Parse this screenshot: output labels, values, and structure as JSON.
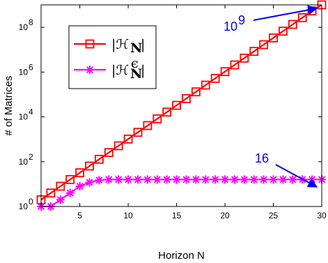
{
  "chart_data": {
    "type": "line",
    "xlabel": "Horizon N",
    "ylabel": "# of Matrices",
    "y_scale": "log",
    "xlim": [
      1,
      30
    ],
    "ylim": [
      1,
      1000000000
    ],
    "x_ticks": [
      5,
      10,
      15,
      20,
      25,
      30
    ],
    "x_tick_labels": [
      "5",
      "10",
      "15",
      "20",
      "25",
      "30"
    ],
    "y_ticks": [
      1,
      100,
      10000,
      1000000,
      100000000
    ],
    "y_tick_labels": [
      {
        "base": "10",
        "exp": "0"
      },
      {
        "base": "10",
        "exp": "2"
      },
      {
        "base": "10",
        "exp": "4"
      },
      {
        "base": "10",
        "exp": "6"
      },
      {
        "base": "10",
        "exp": "8"
      }
    ],
    "grid": false,
    "legend_position": "top-left",
    "x": [
      1,
      2,
      3,
      4,
      5,
      6,
      7,
      8,
      9,
      10,
      11,
      12,
      13,
      14,
      15,
      16,
      17,
      18,
      19,
      20,
      21,
      22,
      23,
      24,
      25,
      26,
      27,
      28,
      29,
      30
    ],
    "series": [
      {
        "name": "|H_N|",
        "legend": {
          "main": "|ℋ",
          "sub": "N",
          "sup": "",
          "close": "|"
        },
        "color": "#ff0000",
        "marker": "square",
        "values": [
          2,
          4,
          8,
          16,
          32,
          64,
          128,
          256,
          512,
          1024,
          2048,
          4096,
          8192,
          16384,
          32768,
          65536,
          131072,
          262144,
          524288,
          1048576,
          2097152,
          4194304,
          8388608,
          16777216,
          33554432,
          67108864,
          134217728,
          268435456,
          536870912,
          1073741824
        ]
      },
      {
        "name": "|H_N^eps|",
        "legend": {
          "main": "|ℋ",
          "sub": "N",
          "sup": "ϵ",
          "close": "|"
        },
        "color": "#ff00ff",
        "marker": "asterisk",
        "values": [
          1,
          1,
          2,
          4,
          8,
          12,
          15,
          16,
          16,
          16,
          16,
          16,
          16,
          16,
          16,
          16,
          16,
          16,
          16,
          16,
          16,
          16,
          16,
          16,
          16,
          16,
          16,
          16,
          16,
          16
        ]
      }
    ],
    "annotations": [
      {
        "text": "10",
        "sup": "9",
        "color": "#0000ff",
        "target": {
          "x": 30,
          "y": 1000000000
        }
      },
      {
        "text": "16",
        "sup": "",
        "color": "#0000ff",
        "target": {
          "x": 30,
          "y": 16
        }
      }
    ]
  }
}
